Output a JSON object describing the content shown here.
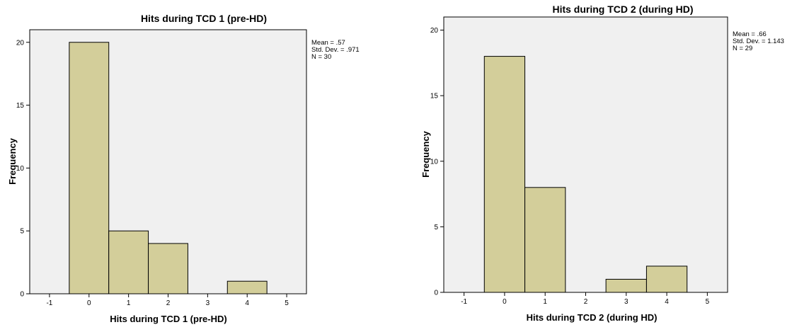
{
  "chart_data": [
    {
      "type": "bar",
      "title": "Hits during TCD 1 (pre-HD)",
      "xlabel": "Hits during TCD 1 (pre-HD)",
      "ylabel": "Frequency",
      "categories": [
        "0",
        "1",
        "2",
        "3",
        "4"
      ],
      "values": [
        20,
        5,
        4,
        0,
        1
      ],
      "xlim": [
        -1.5,
        5.5
      ],
      "ylim": [
        0,
        21
      ],
      "x_ticks": [
        -1,
        0,
        1,
        2,
        3,
        4,
        5
      ],
      "y_ticks": [
        0,
        5,
        10,
        15,
        20
      ],
      "bar_color": "#d3ce9a",
      "plot_background": "#f0f0f0",
      "grid": false,
      "stats": [
        "Mean = .57",
        "Std. Dev. = .971",
        "N = 30"
      ]
    },
    {
      "type": "bar",
      "title": "Hits during TCD 2 (during HD)",
      "xlabel": "Hits during TCD 2 (during HD)",
      "ylabel": "Frequency",
      "categories": [
        "0",
        "1",
        "2",
        "3",
        "4"
      ],
      "values": [
        18,
        8,
        0,
        1,
        2
      ],
      "xlim": [
        -1.5,
        5.5
      ],
      "ylim": [
        0,
        21
      ],
      "x_ticks": [
        -1,
        0,
        1,
        2,
        3,
        4,
        5
      ],
      "y_ticks": [
        0,
        5,
        10,
        15,
        20
      ],
      "bar_color": "#d3ce9a",
      "plot_background": "#f0f0f0",
      "grid": false,
      "stats": [
        "Mean = .66",
        "Std. Dev. = 1.143",
        "N = 29"
      ]
    }
  ]
}
